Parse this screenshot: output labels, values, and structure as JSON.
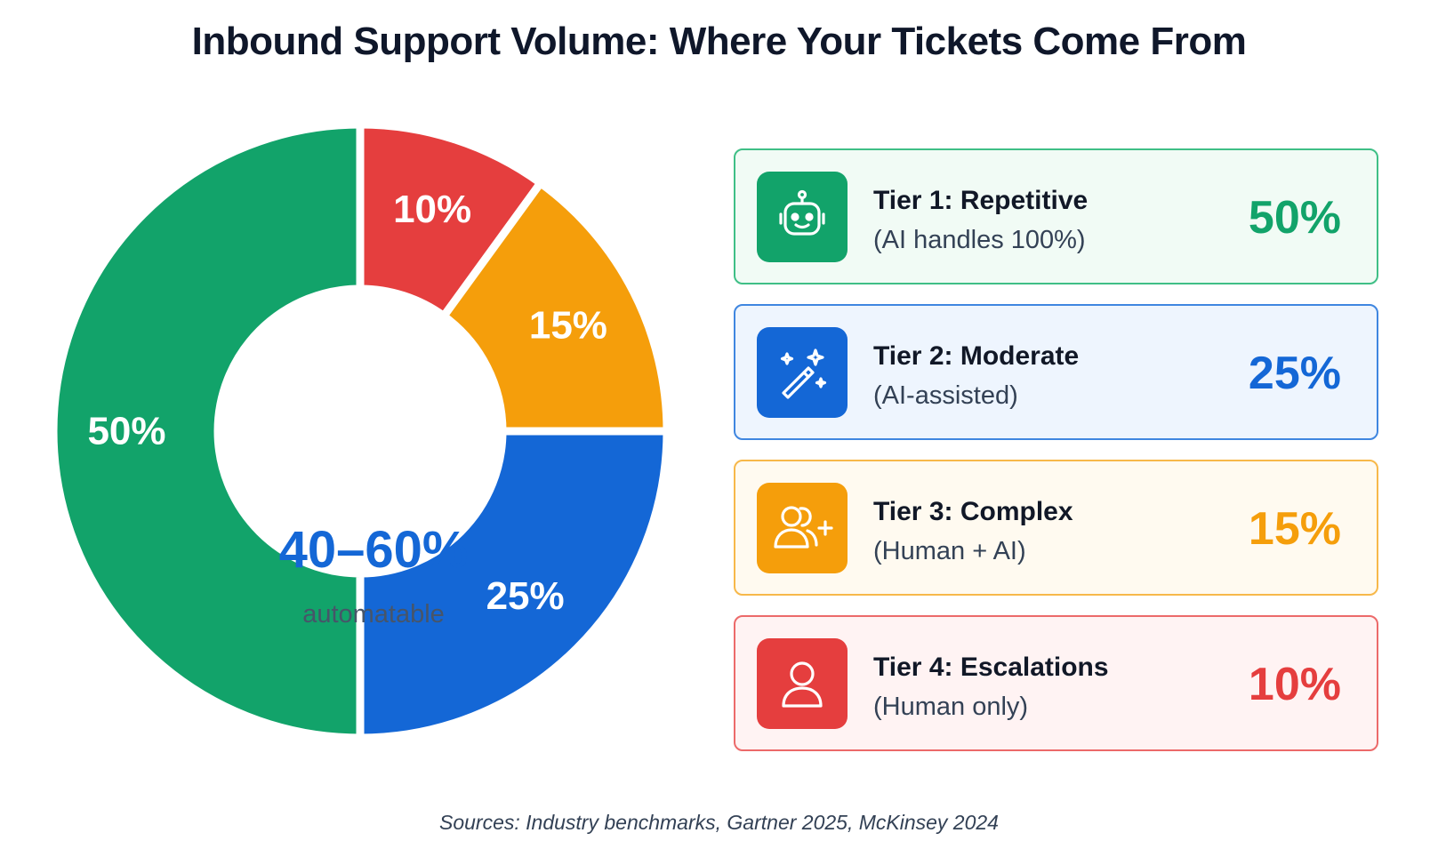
{
  "title": "Inbound Support Volume: Where Your Tickets Come From",
  "center": {
    "value": "40–60%",
    "label": "automatable"
  },
  "chart_data": {
    "type": "pie",
    "title": "Inbound Support Volume: Where Your Tickets Come From",
    "slices": [
      {
        "name": "Tier 4: Escalations",
        "value": 10,
        "label": "10%",
        "color": "#e53e3e"
      },
      {
        "name": "Tier 3: Complex",
        "value": 15,
        "label": "15%",
        "color": "#f59e0b"
      },
      {
        "name": "Tier 2: Moderate",
        "value": 25,
        "label": "25%",
        "color": "#1467d6"
      },
      {
        "name": "Tier 1: Repetitive",
        "value": 50,
        "label": "50%",
        "color": "#12a36a"
      }
    ]
  },
  "tiers": [
    {
      "title": "Tier 1: Repetitive",
      "subtitle": "(AI handles 100%)",
      "pct": "50%",
      "icon": "robot-icon",
      "color": "#12a36a",
      "border": "#3fbf86",
      "bg": "#f1fbf5"
    },
    {
      "title": "Tier 2: Moderate",
      "subtitle": "(AI-assisted)",
      "pct": "25%",
      "icon": "magic-wand-icon",
      "color": "#1467d6",
      "border": "#3f86e0",
      "bg": "#eef5fe"
    },
    {
      "title": "Tier 3: Complex",
      "subtitle": "(Human + AI)",
      "pct": "15%",
      "icon": "add-users-icon",
      "color": "#f59e0b",
      "border": "#f7b84a",
      "bg": "#fffaf0"
    },
    {
      "title": "Tier 4: Escalations",
      "subtitle": "(Human only)",
      "pct": "10%",
      "icon": "user-icon",
      "color": "#e53e3e",
      "border": "#ec6a6a",
      "bg": "#fff3f3"
    }
  ],
  "sources": "Sources: Industry benchmarks, Gartner 2025, McKinsey 2024"
}
